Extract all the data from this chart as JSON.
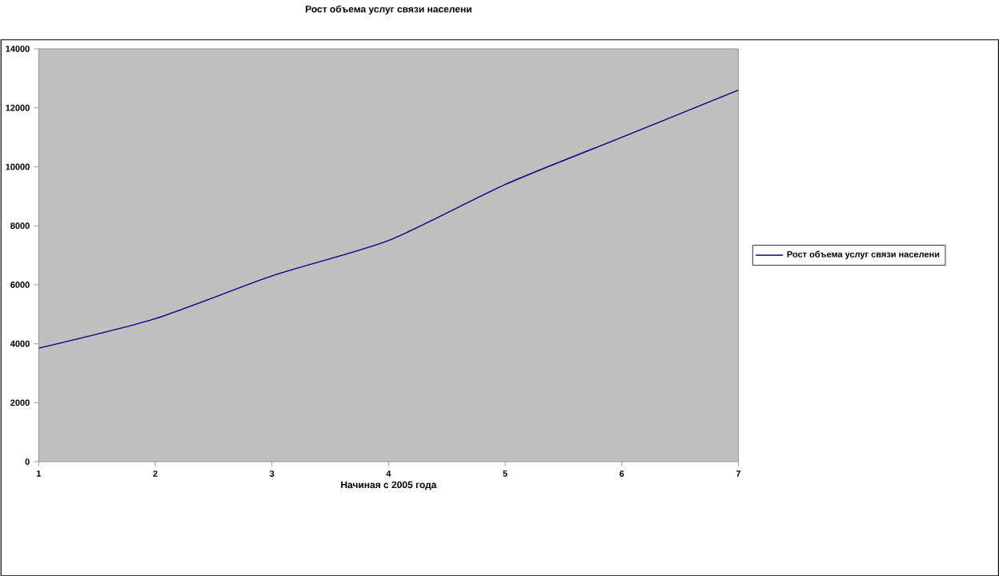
{
  "chart_data": {
    "type": "line",
    "title": "Рост объема услуг связи населени",
    "xlabel": "Начиная с 2005 года",
    "x": [
      1,
      2,
      3,
      4,
      5,
      6,
      7
    ],
    "series": [
      {
        "name": "Рост объема услуг связи населени",
        "color": "#000080",
        "values": [
          3850,
          4850,
          6300,
          7500,
          9400,
          11000,
          12600
        ]
      }
    ],
    "xlim": [
      1,
      7
    ],
    "xticks": [
      1,
      2,
      3,
      4,
      5,
      6,
      7
    ],
    "ylim": [
      0,
      14000
    ],
    "yticks": [
      0,
      2000,
      4000,
      6000,
      8000,
      10000,
      12000,
      14000
    ],
    "legend": "right",
    "grid": false,
    "marker": "none",
    "line_style": "solid"
  }
}
